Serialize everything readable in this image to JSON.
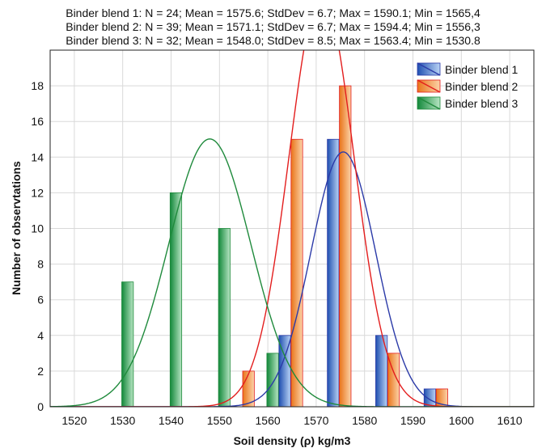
{
  "chart_data": {
    "type": "bar",
    "stats": [
      "Binder blend 1: N = 24; Mean = 1575.6; StdDev = 6.7; Max = 1590.1; Min = 1565,4",
      "Binder blend 2: N = 39; Mean = 1571.1; StdDev = 6.7; Max = 1594.4; Min = 1556,3",
      "Binder blend 3: N = 32; Mean = 1548.0; StdDev = 8.5; Max = 1563.4; Min = 1530.8"
    ],
    "xlabel": "Soil density (ρ) kg/m3",
    "ylabel": "Number of observtations",
    "xlim": [
      1515,
      1615
    ],
    "ylim": [
      0,
      20
    ],
    "xticks": [
      1520,
      1530,
      1540,
      1550,
      1560,
      1570,
      1580,
      1590,
      1600,
      1610
    ],
    "yticks": [
      0,
      2,
      4,
      6,
      8,
      10,
      12,
      14,
      16,
      18
    ],
    "grid": true,
    "legend_position": "top-right",
    "series": [
      {
        "name": "Binder blend 1",
        "color": "#3a6fc6",
        "line_color": "#2b3aa8",
        "bins": [
          1560,
          1570,
          1580,
          1590
        ],
        "values": [
          4,
          15,
          4,
          1
        ],
        "mean": 1575.6,
        "stddev": 6.7,
        "n": 24
      },
      {
        "name": "Binder blend 2",
        "color": "#f28c30",
        "line_color": "#e31d1d",
        "bins": [
          1550,
          1560,
          1570,
          1580,
          1590
        ],
        "values": [
          2,
          15,
          18,
          3,
          1
        ],
        "mean": 1571.1,
        "stddev": 6.7,
        "n": 39
      },
      {
        "name": "Binder blend 3",
        "color": "#1e9e4c",
        "line_color": "#1f8a3c",
        "bins": [
          1530,
          1540,
          1550,
          1560
        ],
        "values": [
          7,
          12,
          10,
          3
        ],
        "mean": 1548.0,
        "stddev": 8.5,
        "n": 32
      }
    ]
  }
}
